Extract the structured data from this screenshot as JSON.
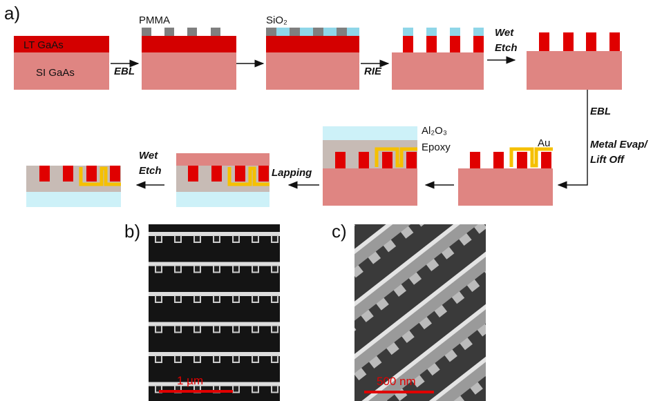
{
  "panel_a": {
    "label": "a)",
    "layers": {
      "lt_gaas": "LT GaAs",
      "si_gaas": "SI GaAs",
      "pmma": "PMMA",
      "sio2": "SiO₂",
      "au": "Au",
      "al2o3": "Al₂O₃",
      "epoxy": "Epoxy"
    },
    "steps": {
      "ebl_1": "EBL",
      "rie": "RIE",
      "wet_etch_1": [
        "Wet",
        "Etch"
      ],
      "ebl_2": "EBL",
      "metal_evap": [
        "Metal Evap/",
        "Lift Off"
      ],
      "lapping": "Lapping",
      "wet_etch_2": [
        "Wet",
        "Etch"
      ]
    }
  },
  "panel_b": {
    "label": "b)",
    "scale_bar": "1 µm"
  },
  "panel_c": {
    "label": "c)",
    "scale_bar": "500 nm"
  }
}
